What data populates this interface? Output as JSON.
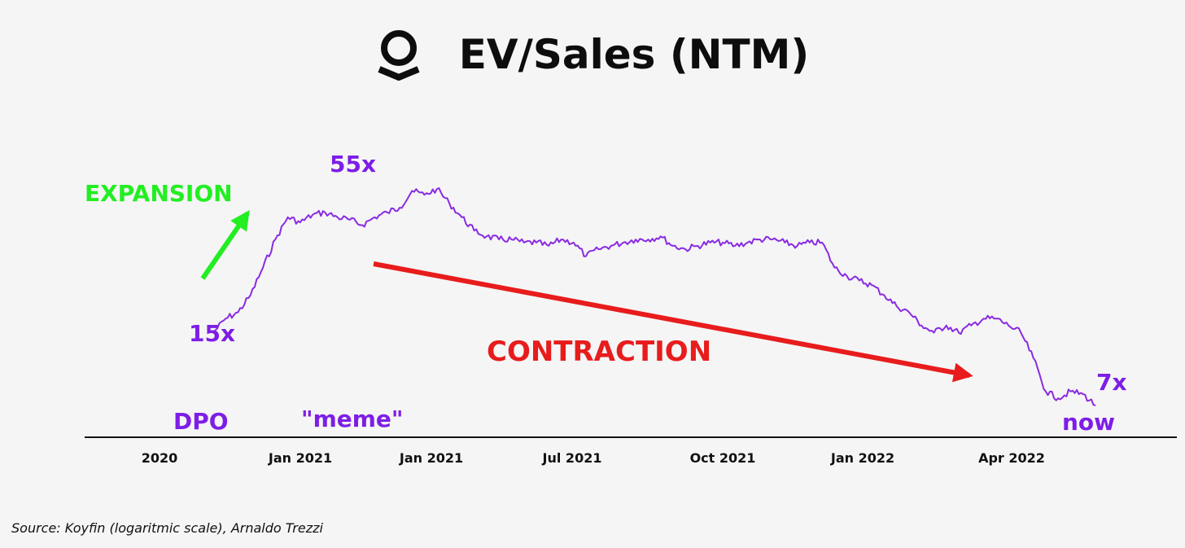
{
  "header": {
    "title": "EV/Sales (NTM)",
    "logo_icon": "palantir-logo-icon"
  },
  "source": "Source: Koyfin (logaritmic scale), Arnaldo Trezzi",
  "colors": {
    "line": "#8a2be2",
    "annotation_purple": "#7d1ee6",
    "expansion": "#22ee22",
    "contraction": "#e81c1c",
    "axis": "#111111",
    "background": "#f5f5f5"
  },
  "annotations": {
    "expansion": "EXPANSION",
    "contraction": "CONTRACTION",
    "peak": "55x",
    "start": "15x",
    "end": "7x",
    "dpo": "DPO",
    "meme": "\"meme\"",
    "now": "now"
  },
  "chart_data": {
    "type": "line",
    "title": "EV/Sales (NTM)",
    "xlabel": "",
    "ylabel": "",
    "y_scale": "log",
    "grid": false,
    "legend": "none",
    "x_tick_labels": [
      "2020",
      "Jan 2021",
      "Jan 2021",
      "Jul 2021",
      "Oct 2021",
      "Jan 2022",
      "Apr 2022"
    ],
    "series": [
      {
        "values": [
          14,
          16,
          17,
          20,
          26,
          34,
          42,
          40,
          43,
          44,
          42,
          41,
          39,
          42,
          44,
          46,
          54,
          52,
          55,
          48,
          42,
          37,
          35,
          34,
          34,
          33,
          33,
          32,
          34,
          33,
          29,
          31,
          32,
          33,
          34,
          34,
          35,
          32,
          31,
          32,
          33,
          33,
          32,
          33,
          34,
          34,
          33,
          32,
          33,
          33,
          26,
          24,
          23,
          22,
          20,
          18,
          17,
          15,
          14,
          15,
          14,
          15,
          16,
          16,
          15,
          14,
          11,
          8,
          7.5,
          8,
          7.8,
          7
        ]
      }
    ],
    "data_labels": [
      "15x",
      "55x",
      "7x"
    ]
  }
}
